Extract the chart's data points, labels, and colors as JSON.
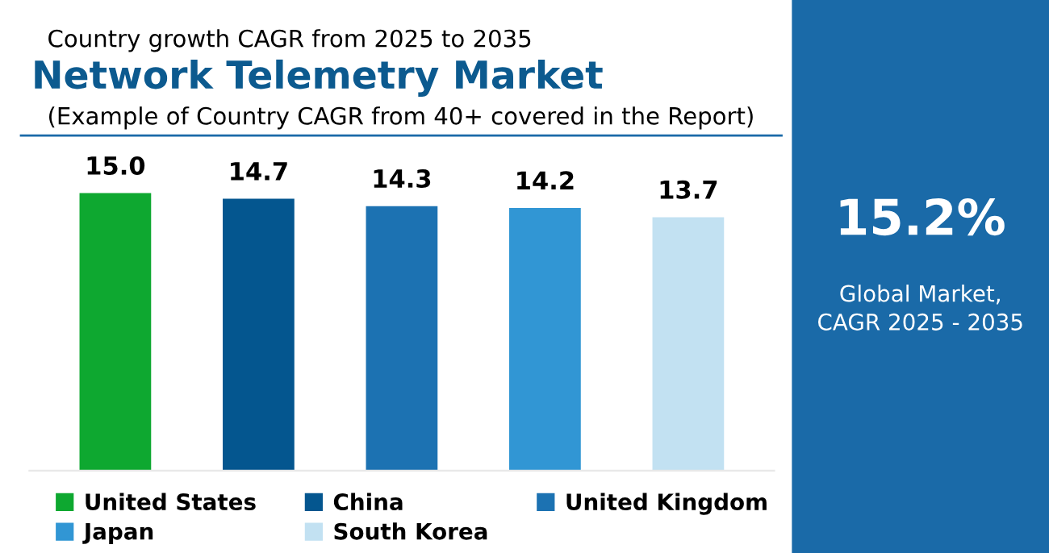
{
  "chart_data": [
    {
      "type": "bar",
      "title": "Network Telemetry Market",
      "subtitle": "(Example of Country CAGR from 40+ covered in the Report)",
      "annotations": [
        "Country growth CAGR from 2025 to 2035"
      ],
      "categories": [
        null,
        null,
        null,
        null,
        null
      ],
      "series": [
        {
          "name": "United States",
          "color": "#0ea830",
          "values": [
            15.0,
            null,
            null,
            null,
            null
          ],
          "value_labels": [
            "15.0",
            null,
            null,
            null,
            null
          ]
        },
        {
          "name": "China",
          "color": "#04568f",
          "values": [
            null,
            14.7,
            null,
            null,
            null
          ],
          "value_labels": [
            null,
            "14.7",
            null,
            null,
            null
          ]
        },
        {
          "name": "United Kingdom",
          "color": "#1c72b2",
          "values": [
            null,
            null,
            14.3,
            null,
            null
          ],
          "value_labels": [
            null,
            null,
            "14.3",
            null,
            null
          ]
        },
        {
          "name": "Japan",
          "color": "#3196d4",
          "values": [
            null,
            null,
            null,
            14.2,
            null
          ],
          "value_labels": [
            null,
            null,
            null,
            "14.2",
            null
          ]
        },
        {
          "name": "South Korea",
          "color": "#c2e1f2",
          "values": [
            null,
            null,
            null,
            null,
            13.7
          ],
          "value_labels": [
            null,
            null,
            null,
            null,
            "13.7"
          ]
        }
      ],
      "stacked": true,
      "tick_labels": false,
      "legend": "bottom",
      "grid": false
    },
    {
      "type": "other",
      "title": "15.2%",
      "annotations": [
        "Global Market,\nCAGR 2025 - 2035"
      ],
      "color": "#1a6aa8"
    }
  ]
}
